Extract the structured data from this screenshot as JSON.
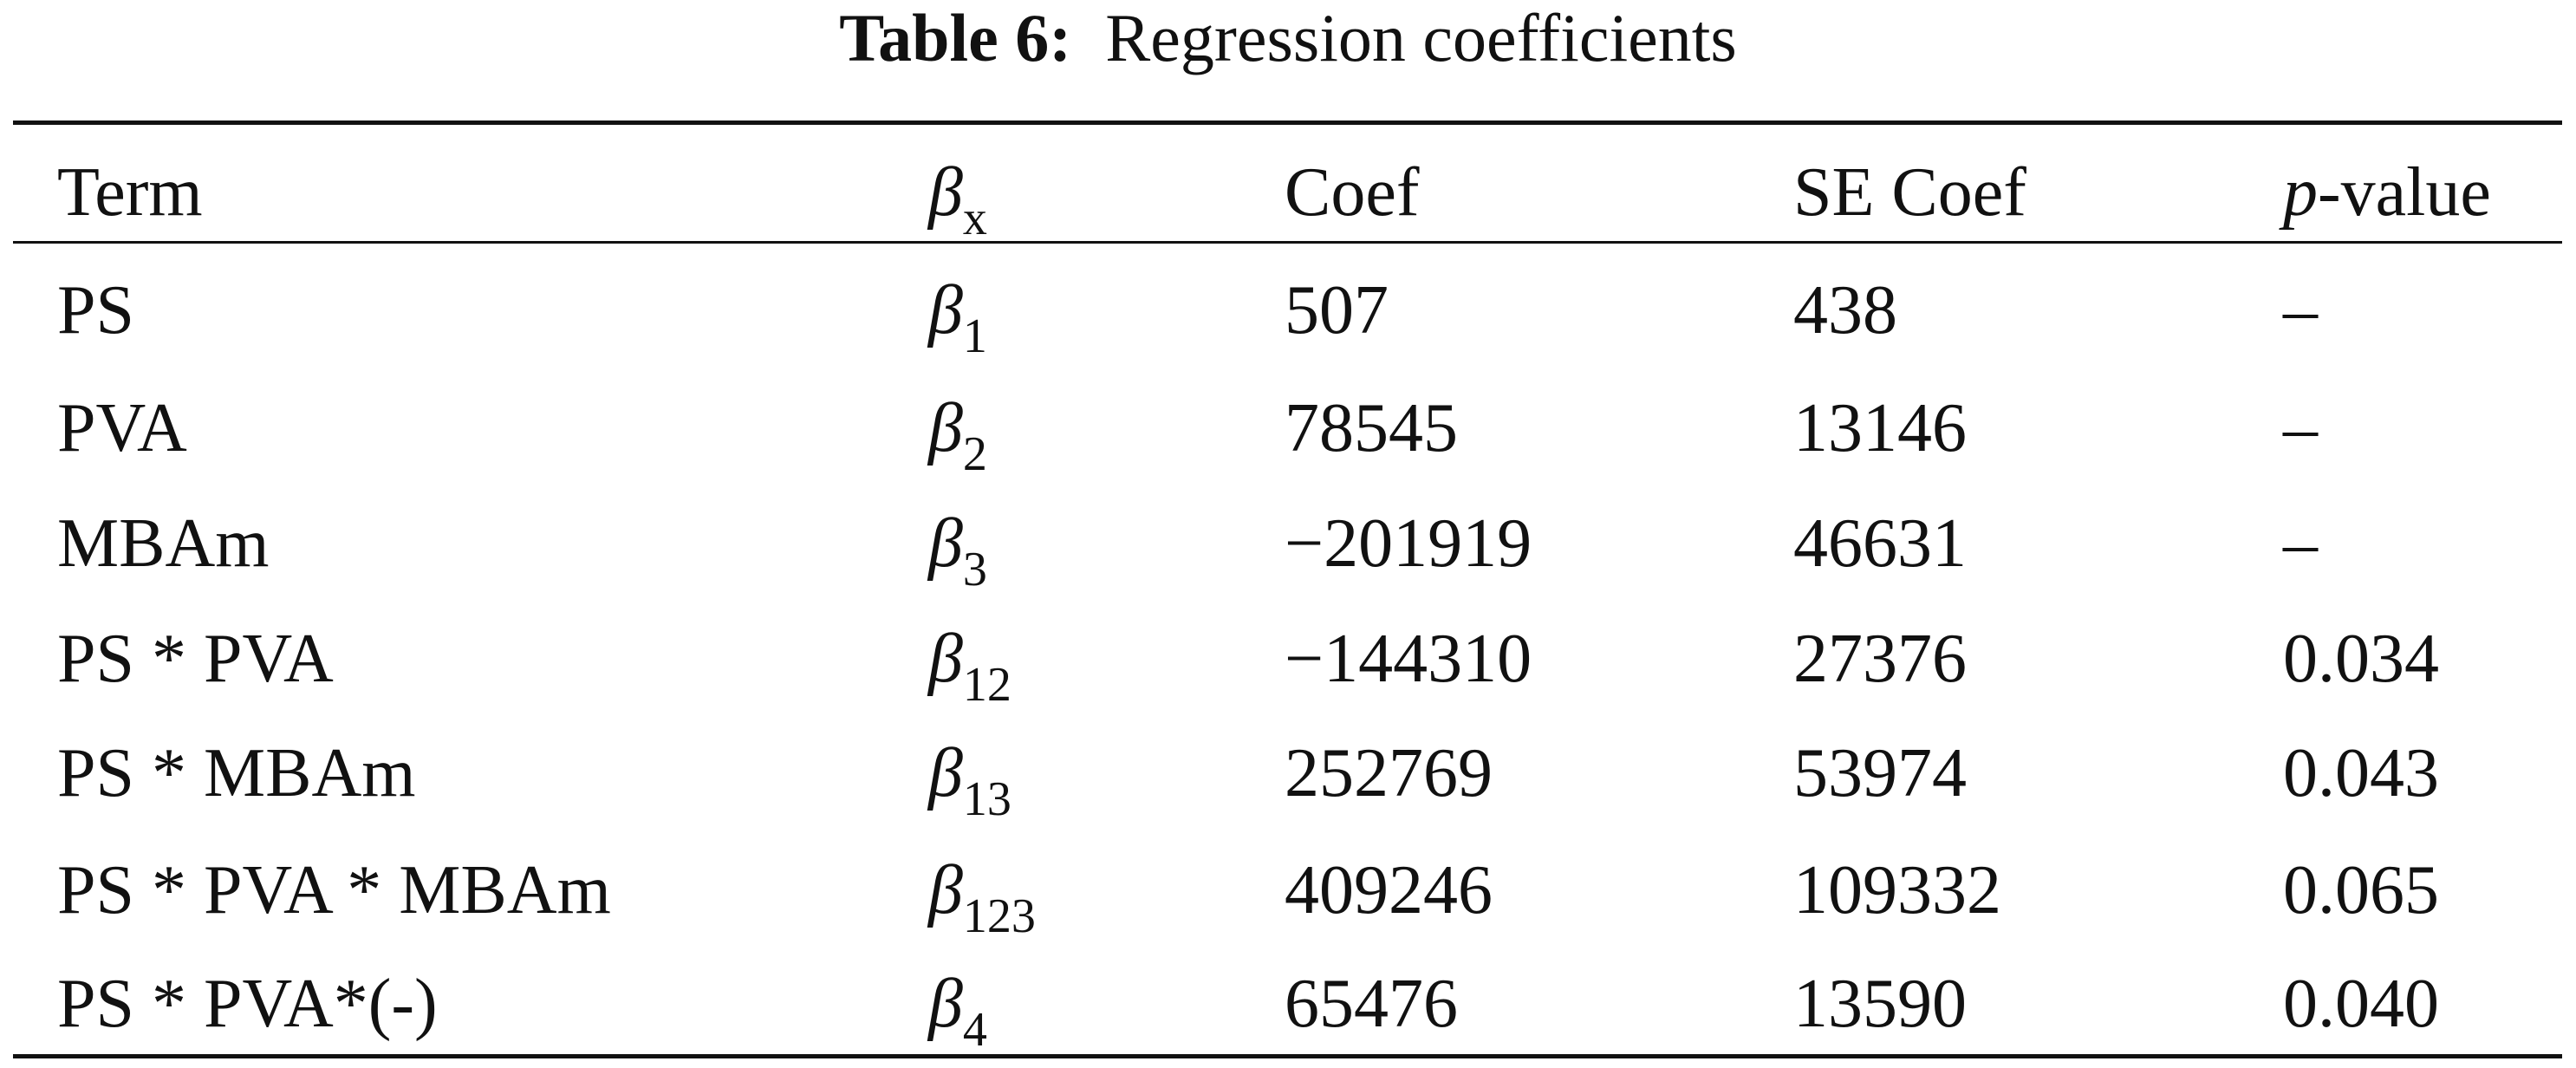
{
  "title": {
    "label": "Table 6:",
    "text": "Regression coefficients"
  },
  "table": {
    "header": [
      {
        "text": "Term"
      },
      {
        "symbol": "β",
        "sub": "x"
      },
      {
        "text": "Coef"
      },
      {
        "text": "SE Coef"
      },
      {
        "italic": "p",
        "text": "-value"
      }
    ],
    "rows": [
      [
        {
          "text": "PS"
        },
        {
          "symbol": "β",
          "sub": "1"
        },
        {
          "text": "507"
        },
        {
          "text": "438"
        },
        {
          "text": "–"
        }
      ],
      [
        {
          "text": "PVA"
        },
        {
          "symbol": "β",
          "sub": "2"
        },
        {
          "text": "78545"
        },
        {
          "text": "13146"
        },
        {
          "text": "–"
        }
      ],
      [
        {
          "text": "MBAm"
        },
        {
          "symbol": "β",
          "sub": "3"
        },
        {
          "text": "−201919"
        },
        {
          "text": "46631"
        },
        {
          "text": "–"
        }
      ],
      [
        {
          "text": "PS * PVA"
        },
        {
          "symbol": "β",
          "sub": "12"
        },
        {
          "text": "−144310"
        },
        {
          "text": "27376"
        },
        {
          "text": "0.034"
        }
      ],
      [
        {
          "text": "PS * MBAm"
        },
        {
          "symbol": "β",
          "sub": "13"
        },
        {
          "text": "252769"
        },
        {
          "text": "53974"
        },
        {
          "text": "0.043"
        }
      ],
      [
        {
          "text": "PS * PVA * MBAm"
        },
        {
          "symbol": "β",
          "sub": "123"
        },
        {
          "text": "409246"
        },
        {
          "text": "109332"
        },
        {
          "text": "0.065"
        }
      ],
      [
        {
          "text": "PS * PVA*(-)"
        },
        {
          "symbol": "β",
          "sub": "4"
        },
        {
          "text": "65476"
        },
        {
          "text": "13590"
        },
        {
          "text": "0.040"
        }
      ]
    ]
  }
}
